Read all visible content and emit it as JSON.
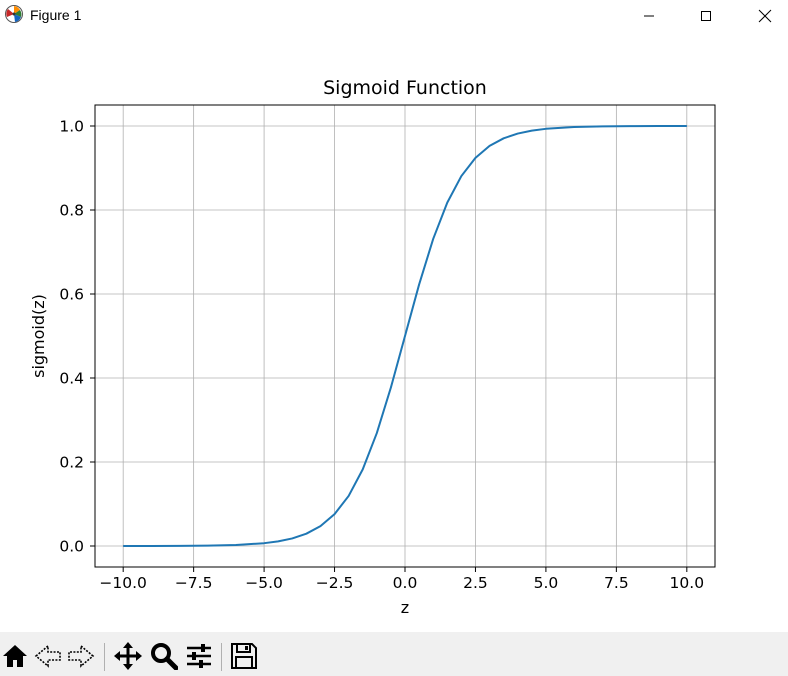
{
  "window": {
    "title": "Figure 1",
    "icons": [
      "matplotlib-logo-icon",
      "minimize-icon",
      "maximize-icon",
      "close-icon"
    ]
  },
  "toolbar": {
    "buttons": [
      "home-icon",
      "back-icon",
      "forward-icon",
      "pan-icon",
      "zoom-icon",
      "configure-subplots-icon",
      "save-icon"
    ]
  },
  "chart_data": {
    "type": "line",
    "title": "Sigmoid Function",
    "xlabel": "z",
    "ylabel": "sigmoid(z)",
    "xlim": [
      -11,
      11
    ],
    "ylim": [
      -0.05,
      1.05
    ],
    "x_ticks": [
      -10,
      -7.5,
      -5,
      -2.5,
      0,
      2.5,
      5,
      7.5,
      10
    ],
    "x_tick_labels": [
      "−10.0",
      "−7.5",
      "−5.0",
      "−2.5",
      "0.0",
      "2.5",
      "5.0",
      "7.5",
      "10.0"
    ],
    "y_ticks": [
      0,
      0.2,
      0.4,
      0.6,
      0.8,
      1.0
    ],
    "y_tick_labels": [
      "0.0",
      "0.2",
      "0.4",
      "0.6",
      "0.8",
      "1.0"
    ],
    "grid": true,
    "line_color": "#1f77b4",
    "series": [
      {
        "x": [
          -10,
          -9,
          -8,
          -7,
          -6,
          -5,
          -4.5,
          -4,
          -3.5,
          -3,
          -2.5,
          -2,
          -1.5,
          -1,
          -0.5,
          0,
          0.5,
          1,
          1.5,
          2,
          2.5,
          3,
          3.5,
          4,
          4.5,
          5,
          6,
          7,
          8,
          9,
          10
        ],
        "y": [
          4.54e-05,
          0.000123,
          0.000335,
          0.000911,
          0.00247,
          0.00669,
          0.011,
          0.018,
          0.0293,
          0.0474,
          0.0759,
          0.1192,
          0.1824,
          0.2689,
          0.3775,
          0.5,
          0.6225,
          0.7311,
          0.8176,
          0.8808,
          0.9241,
          0.9526,
          0.9707,
          0.982,
          0.989,
          0.99331,
          0.99753,
          0.99909,
          0.999665,
          0.999877,
          0.9999546
        ]
      }
    ]
  }
}
